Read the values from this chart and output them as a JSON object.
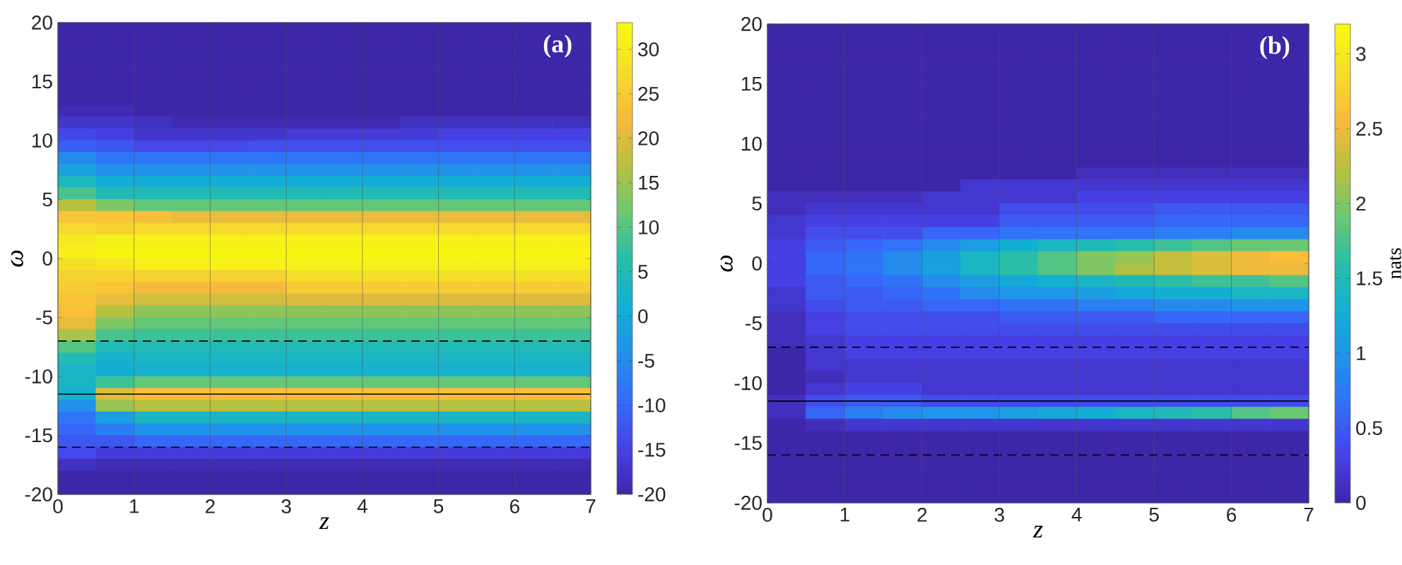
{
  "chart_data": [
    {
      "type": "heatmap",
      "annotations": [
        "(a)"
      ],
      "xlabel": "z",
      "ylabel": "ω",
      "x": [
        0.25,
        0.75,
        1.25,
        1.75,
        2.25,
        2.75,
        3.25,
        3.75,
        4.25,
        4.75,
        5.25,
        5.75,
        6.25,
        6.75
      ],
      "y": [
        19.5,
        18.5,
        17.5,
        16.5,
        15.5,
        14.5,
        13.5,
        12.5,
        11.5,
        10.5,
        9.5,
        8.5,
        7.5,
        6.5,
        5.5,
        4.5,
        3.5,
        2.5,
        1.5,
        0.5,
        -0.5,
        -1.5,
        -2.5,
        -3.5,
        -4.5,
        -5.5,
        -6.5,
        -7.5,
        -8.5,
        -9.5,
        -10.5,
        -11.5,
        -12.5,
        -13.5,
        -14.5,
        -15.5,
        -16.5,
        -17.5,
        -18.5,
        -19.5
      ],
      "cells": [
        [
          -20,
          -20,
          -20,
          -20,
          -20,
          -20,
          -20,
          -20,
          -20,
          -20,
          -20,
          -20,
          -20,
          -20
        ],
        [
          -20,
          -20,
          -20,
          -20,
          -20,
          -20,
          -20,
          -20,
          -20,
          -20,
          -20,
          -20,
          -20,
          -20
        ],
        [
          -20,
          -20,
          -20,
          -20,
          -20,
          -20,
          -20,
          -20,
          -20,
          -20,
          -20,
          -20,
          -20,
          -20
        ],
        [
          -20,
          -20,
          -20,
          -20,
          -20,
          -20,
          -20,
          -20,
          -20,
          -20,
          -20,
          -20,
          -20,
          -20
        ],
        [
          -20,
          -20,
          -20,
          -20,
          -20,
          -20,
          -20,
          -20,
          -20,
          -20,
          -20,
          -20,
          -20,
          -20
        ],
        [
          -20,
          -20,
          -20,
          -20,
          -20,
          -20,
          -20,
          -20,
          -20,
          -20,
          -20,
          -20,
          -20,
          -20
        ],
        [
          -20,
          -20,
          -20,
          -20,
          -20,
          -20,
          -20,
          -20,
          -20,
          -20,
          -20,
          -20,
          -20,
          -20
        ],
        [
          -19,
          -19,
          -20,
          -20,
          -20,
          -20,
          -20,
          -20,
          -20,
          -20,
          -20,
          -20,
          -20,
          -20
        ],
        [
          -17,
          -17,
          -18,
          -19,
          -19,
          -19,
          -19,
          -19,
          -19,
          -18,
          -18,
          -18,
          -18,
          -18
        ],
        [
          -14,
          -15,
          -17,
          -17,
          -17,
          -17,
          -16,
          -16,
          -16,
          -16,
          -15,
          -15,
          -15,
          -15
        ],
        [
          -11,
          -12,
          -14,
          -14,
          -14,
          -13,
          -13,
          -13,
          -13,
          -13,
          -13,
          -13,
          -13,
          -13
        ],
        [
          -5,
          -8,
          -8,
          -8,
          -8,
          -8,
          -8,
          -8,
          -8,
          -8,
          -8,
          -8,
          -8,
          -8
        ],
        [
          -1,
          -4,
          -4,
          -4,
          -4,
          -4,
          -4,
          -4,
          -4,
          -4,
          -4,
          -4,
          -4,
          -4
        ],
        [
          4,
          1,
          1,
          1,
          1,
          1,
          1,
          1,
          1,
          1,
          1,
          1,
          1,
          1
        ],
        [
          9,
          5,
          5,
          5,
          5,
          5,
          5,
          5,
          5,
          5,
          5,
          5,
          5,
          5
        ],
        [
          17,
          13,
          11,
          11,
          11,
          11,
          11,
          11,
          11,
          11,
          11,
          11,
          11,
          11
        ],
        [
          24,
          24,
          23,
          21,
          21,
          21,
          21,
          21,
          21,
          21,
          21,
          21,
          21,
          21
        ],
        [
          27,
          26,
          27,
          27,
          27,
          27,
          27,
          27,
          27,
          27,
          27,
          27,
          27,
          27
        ],
        [
          30,
          31,
          31,
          31,
          31,
          31,
          31,
          31,
          31,
          31,
          31,
          31,
          31,
          31
        ],
        [
          31,
          32,
          32,
          32,
          32,
          32,
          32,
          32,
          32,
          32,
          32,
          32,
          32,
          32
        ],
        [
          28,
          29,
          31,
          31,
          31,
          31,
          31,
          31,
          31,
          31,
          31,
          31,
          31,
          31
        ],
        [
          26,
          26,
          26,
          26,
          26,
          26,
          28,
          28,
          28,
          28,
          28,
          28,
          28,
          28
        ],
        [
          25,
          24,
          22,
          22,
          22,
          22,
          25,
          25,
          25,
          25,
          25,
          25,
          25,
          25
        ],
        [
          24,
          21,
          19,
          19,
          19,
          19,
          20,
          20,
          20,
          20,
          20,
          20,
          20,
          20
        ],
        [
          23,
          17,
          14,
          14,
          14,
          14,
          14,
          14,
          14,
          14,
          14,
          14,
          14,
          14
        ],
        [
          21,
          13,
          11,
          11,
          11,
          11,
          11,
          11,
          11,
          11,
          11,
          11,
          11,
          11
        ],
        [
          16,
          9,
          8,
          8,
          8,
          8,
          8,
          8,
          8,
          8,
          8,
          8,
          8,
          8
        ],
        [
          10,
          5,
          5,
          5,
          5,
          5,
          5,
          5,
          5,
          5,
          5,
          5,
          5,
          5
        ],
        [
          5,
          2,
          3,
          3,
          3,
          3,
          3,
          3,
          3,
          3,
          3,
          3,
          3,
          3
        ],
        [
          3,
          1,
          2,
          2,
          2,
          2,
          2,
          2,
          2,
          2,
          2,
          2,
          2,
          2
        ],
        [
          3,
          8,
          11,
          11,
          11,
          11,
          11,
          11,
          11,
          11,
          11,
          11,
          11,
          11
        ],
        [
          2,
          20,
          23,
          23,
          23,
          23,
          23,
          23,
          23,
          23,
          23,
          23,
          23,
          23
        ],
        [
          -4,
          15,
          17,
          17,
          17,
          17,
          17,
          17,
          17,
          17,
          17,
          17,
          17,
          17
        ],
        [
          -8,
          -2,
          3,
          3,
          3,
          3,
          3,
          3,
          3,
          3,
          3,
          3,
          3,
          3
        ],
        [
          -10,
          -7,
          -4,
          -4,
          -4,
          -4,
          -4,
          -4,
          -4,
          -4,
          -4,
          -4,
          -4,
          -4
        ],
        [
          -12,
          -12,
          -10,
          -10,
          -10,
          -10,
          -10,
          -10,
          -10,
          -10,
          -10,
          -10,
          -10,
          -10
        ],
        [
          -14,
          -16,
          -16,
          -16,
          -16,
          -16,
          -16,
          -16,
          -16,
          -16,
          -16,
          -16,
          -16,
          -16
        ],
        [
          -18,
          -19,
          -19,
          -19,
          -19,
          -19,
          -19,
          -19,
          -19,
          -19,
          -19,
          -19,
          -19,
          -19
        ],
        [
          -20,
          -20,
          -20,
          -20,
          -20,
          -20,
          -20,
          -20,
          -20,
          -20,
          -20,
          -20,
          -20,
          -20
        ],
        [
          -20,
          -20,
          -20,
          -20,
          -20,
          -20,
          -20,
          -20,
          -20,
          -20,
          -20,
          -20,
          -20,
          -20
        ]
      ],
      "xlim": [
        0,
        7
      ],
      "ylim": [
        -20,
        20
      ],
      "xticks": [
        0,
        1,
        2,
        3,
        4,
        5,
        6,
        7
      ],
      "yticks": [
        -20,
        -15,
        -10,
        -5,
        0,
        5,
        10,
        15,
        20
      ],
      "clim": [
        -20,
        33
      ],
      "cticks": [
        -20,
        -15,
        -10,
        -5,
        0,
        5,
        10,
        15,
        20,
        25,
        30
      ],
      "ref_lines": [
        {
          "axis": "y",
          "value": -7,
          "color": "#000000",
          "line_style": "dashed"
        },
        {
          "axis": "y",
          "value": -11.5,
          "color": "#000000",
          "line_style": "solid"
        },
        {
          "axis": "y",
          "value": -16,
          "color": "#000000",
          "line_style": "dashed"
        }
      ],
      "grid": "x"
    },
    {
      "type": "heatmap",
      "annotations": [
        "(b)"
      ],
      "xlabel": "z",
      "ylabel": "ω",
      "clabel": "nats",
      "x": [
        0.25,
        0.75,
        1.25,
        1.75,
        2.25,
        2.75,
        3.25,
        3.75,
        4.25,
        4.75,
        5.25,
        5.75,
        6.25,
        6.75
      ],
      "y": [
        19.5,
        18.5,
        17.5,
        16.5,
        15.5,
        14.5,
        13.5,
        12.5,
        11.5,
        10.5,
        9.5,
        8.5,
        7.5,
        6.5,
        5.5,
        4.5,
        3.5,
        2.5,
        1.5,
        0.5,
        -0.5,
        -1.5,
        -2.5,
        -3.5,
        -4.5,
        -5.5,
        -6.5,
        -7.5,
        -8.5,
        -9.5,
        -10.5,
        -11.5,
        -12.5,
        -13.5,
        -14.5,
        -15.5,
        -16.5,
        -17.5,
        -18.5,
        -19.5
      ],
      "cells": [
        [
          0,
          0,
          0,
          0,
          0,
          0,
          0,
          0,
          0,
          0,
          0,
          0,
          0,
          0
        ],
        [
          0,
          0,
          0,
          0,
          0,
          0,
          0,
          0,
          0,
          0,
          0,
          0,
          0,
          0
        ],
        [
          0,
          0,
          0,
          0,
          0,
          0,
          0,
          0,
          0,
          0,
          0,
          0,
          0,
          0
        ],
        [
          0,
          0,
          0,
          0,
          0,
          0,
          0,
          0,
          0,
          0,
          0,
          0,
          0,
          0
        ],
        [
          0,
          0,
          0,
          0,
          0,
          0,
          0,
          0,
          0,
          0,
          0,
          0,
          0,
          0
        ],
        [
          0,
          0,
          0,
          0,
          0,
          0,
          0,
          0,
          0,
          0,
          0,
          0,
          0,
          0
        ],
        [
          0,
          0,
          0,
          0,
          0,
          0,
          0,
          0,
          0,
          0,
          0,
          0,
          0,
          0
        ],
        [
          0,
          0,
          0,
          0,
          0,
          0,
          0,
          0,
          0,
          0,
          0,
          0,
          0,
          0
        ],
        [
          0,
          0,
          0,
          0,
          0,
          0,
          0,
          0,
          0,
          0,
          0,
          0,
          0,
          0
        ],
        [
          0,
          0,
          0,
          0,
          0,
          0,
          0,
          0,
          0,
          0,
          0,
          0,
          0,
          0
        ],
        [
          0,
          0,
          0,
          0,
          0,
          0,
          0,
          0,
          0,
          0,
          0,
          0,
          0,
          0
        ],
        [
          0,
          0,
          0,
          0,
          0,
          0,
          0,
          0,
          0,
          0,
          0,
          0,
          0,
          0
        ],
        [
          0,
          0,
          0,
          0,
          0,
          0,
          0,
          0,
          0.1,
          0.1,
          0.1,
          0.1,
          0.1,
          0.1
        ],
        [
          0,
          0,
          0,
          0,
          0,
          0.2,
          0.2,
          0.2,
          0.2,
          0.2,
          0.2,
          0.2,
          0.2,
          0.2
        ],
        [
          0.1,
          0.1,
          0.1,
          0.1,
          0.2,
          0.2,
          0.2,
          0.2,
          0.3,
          0.3,
          0.3,
          0.3,
          0.3,
          0.3
        ],
        [
          0.1,
          0.2,
          0.2,
          0.2,
          0.2,
          0.2,
          0.4,
          0.4,
          0.4,
          0.4,
          0.5,
          0.5,
          0.5,
          0.5
        ],
        [
          0.2,
          0.3,
          0.3,
          0.3,
          0.3,
          0.3,
          0.5,
          0.5,
          0.5,
          0.5,
          0.6,
          0.6,
          0.6,
          0.6
        ],
        [
          0.2,
          0.4,
          0.4,
          0.4,
          0.6,
          0.6,
          0.7,
          0.7,
          0.7,
          0.7,
          0.8,
          0.8,
          0.9,
          0.9
        ],
        [
          0.3,
          0.5,
          0.6,
          0.7,
          0.9,
          1.1,
          1.3,
          1.4,
          1.5,
          1.6,
          1.7,
          1.8,
          1.9,
          1.9
        ],
        [
          0.3,
          0.6,
          0.7,
          0.9,
          1.1,
          1.4,
          1.6,
          1.8,
          2.0,
          2.1,
          2.3,
          2.4,
          2.5,
          2.6
        ],
        [
          0.3,
          0.6,
          0.7,
          0.9,
          1.1,
          1.4,
          1.6,
          1.8,
          2.0,
          2.2,
          2.3,
          2.4,
          2.5,
          2.5
        ],
        [
          0.3,
          0.5,
          0.6,
          0.7,
          0.9,
          1.1,
          1.2,
          1.3,
          1.4,
          1.5,
          1.6,
          1.7,
          1.7,
          1.8
        ],
        [
          0.2,
          0.5,
          0.5,
          0.6,
          0.7,
          0.9,
          1.0,
          1.0,
          1.1,
          1.2,
          1.3,
          1.3,
          1.4,
          1.4
        ],
        [
          0.2,
          0.4,
          0.5,
          0.5,
          0.6,
          0.6,
          0.7,
          0.7,
          0.8,
          0.8,
          0.9,
          0.9,
          1.0,
          1.0
        ],
        [
          0.1,
          0.3,
          0.4,
          0.4,
          0.4,
          0.4,
          0.5,
          0.5,
          0.5,
          0.5,
          0.6,
          0.6,
          0.6,
          0.6
        ],
        [
          0.1,
          0.3,
          0.4,
          0.4,
          0.4,
          0.4,
          0.4,
          0.4,
          0.4,
          0.4,
          0.4,
          0.4,
          0.4,
          0.4
        ],
        [
          0.1,
          0.2,
          0.3,
          0.3,
          0.3,
          0.3,
          0.3,
          0.3,
          0.3,
          0.3,
          0.3,
          0.3,
          0.3,
          0.3
        ],
        [
          0,
          0.2,
          0.3,
          0.3,
          0.3,
          0.3,
          0.3,
          0.3,
          0.3,
          0.3,
          0.3,
          0.3,
          0.3,
          0.3
        ],
        [
          0,
          0.2,
          0.2,
          0.2,
          0.2,
          0.2,
          0.2,
          0.2,
          0.2,
          0.2,
          0.2,
          0.2,
          0.2,
          0.2
        ],
        [
          0,
          0.1,
          0.2,
          0.2,
          0.2,
          0.2,
          0.2,
          0.2,
          0.2,
          0.2,
          0.2,
          0.2,
          0.2,
          0.2
        ],
        [
          0,
          0.2,
          0.3,
          0.3,
          0.2,
          0.2,
          0.2,
          0.2,
          0.2,
          0.2,
          0.2,
          0.2,
          0.2,
          0.2
        ],
        [
          0.1,
          0.4,
          0.5,
          0.5,
          0.4,
          0.4,
          0.4,
          0.4,
          0.4,
          0.4,
          0.4,
          0.4,
          0.4,
          0.4
        ],
        [
          0.1,
          0.6,
          0.8,
          0.9,
          1.0,
          1.0,
          1.1,
          1.2,
          1.3,
          1.4,
          1.5,
          1.6,
          1.8,
          1.9
        ],
        [
          0,
          0.1,
          0.2,
          0.2,
          0.2,
          0.2,
          0.2,
          0.2,
          0.2,
          0.2,
          0.2,
          0.2,
          0.2,
          0.2
        ],
        [
          0,
          0,
          0,
          0,
          0,
          0,
          0,
          0,
          0,
          0,
          0,
          0,
          0,
          0
        ],
        [
          0,
          0,
          0,
          0,
          0,
          0,
          0,
          0,
          0,
          0,
          0,
          0,
          0,
          0
        ],
        [
          0,
          0,
          0,
          0,
          0,
          0,
          0,
          0,
          0,
          0,
          0,
          0,
          0,
          0
        ],
        [
          0,
          0,
          0,
          0,
          0,
          0,
          0,
          0,
          0,
          0,
          0,
          0,
          0,
          0
        ],
        [
          0,
          0,
          0,
          0,
          0,
          0,
          0,
          0,
          0,
          0,
          0,
          0,
          0,
          0
        ],
        [
          0,
          0,
          0,
          0,
          0,
          0,
          0,
          0,
          0,
          0,
          0,
          0,
          0,
          0
        ]
      ],
      "xlim": [
        0,
        7
      ],
      "ylim": [
        -20,
        20
      ],
      "xticks": [
        0,
        1,
        2,
        3,
        4,
        5,
        6,
        7
      ],
      "yticks": [
        -20,
        -15,
        -10,
        -5,
        0,
        5,
        10,
        15,
        20
      ],
      "clim": [
        0,
        3.2
      ],
      "cticks": [
        0,
        0.5,
        1,
        1.5,
        2,
        2.5,
        3
      ],
      "ref_lines": [
        {
          "axis": "y",
          "value": -7,
          "color": "#000000",
          "line_style": "dashed"
        },
        {
          "axis": "y",
          "value": -11.5,
          "color": "#000000",
          "line_style": "solid"
        },
        {
          "axis": "y",
          "value": -16,
          "color": "#000000",
          "line_style": "dashed"
        }
      ],
      "grid": "x"
    }
  ]
}
